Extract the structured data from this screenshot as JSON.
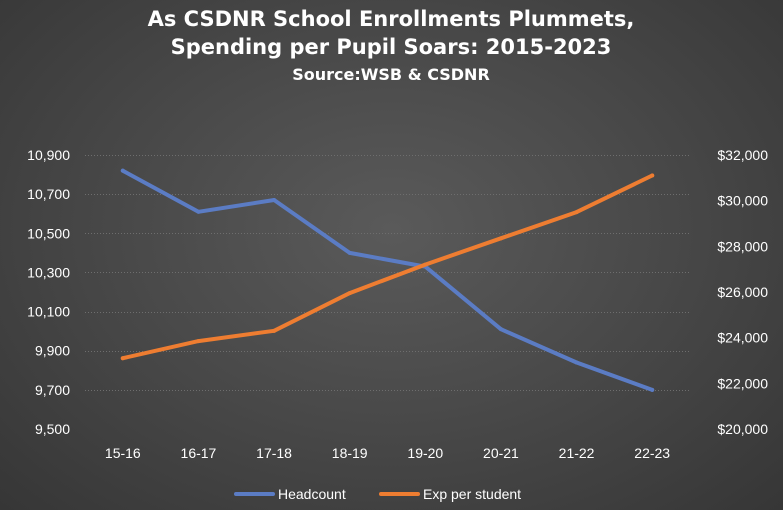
{
  "chart_data": {
    "type": "line",
    "title_line1": "As CSDNR School Enrollments Plummets,",
    "title_line2": "Spending  per Pupil Soars: 2015-2023",
    "subtitle": "Source:WSB & CSDNR",
    "categories": [
      "15-16",
      "16-17",
      "17-18",
      "18-19",
      "19-20",
      "20-21",
      "21-22",
      "22-23"
    ],
    "left_axis": {
      "ylim": [
        9500,
        10900
      ],
      "ticks": [
        9500,
        9700,
        9900,
        10100,
        10300,
        10500,
        10700,
        10900
      ],
      "tick_labels": [
        "9,500",
        "9,700",
        "9,900",
        "10,100",
        "10,300",
        "10,500",
        "10,700",
        "10,900"
      ]
    },
    "right_axis": {
      "ylim": [
        20000,
        32000
      ],
      "ticks": [
        20000,
        22000,
        24000,
        26000,
        28000,
        30000,
        32000
      ],
      "tick_labels": [
        "$20,000",
        "$22,000",
        "$24,000",
        "$26,000",
        "$28,000",
        "$30,000",
        "$32,000"
      ]
    },
    "series": [
      {
        "name": "Headcount",
        "axis": "left",
        "color": "#5b7cc4",
        "values": [
          10820,
          10610,
          10670,
          10400,
          10330,
          10010,
          9840,
          9700
        ]
      },
      {
        "name": "Exp per student",
        "axis": "right",
        "color": "#ee7d31",
        "values": [
          23100,
          23850,
          24300,
          25950,
          27200,
          28350,
          29500,
          31100
        ]
      }
    ],
    "grid": true,
    "legend_position": "bottom"
  }
}
